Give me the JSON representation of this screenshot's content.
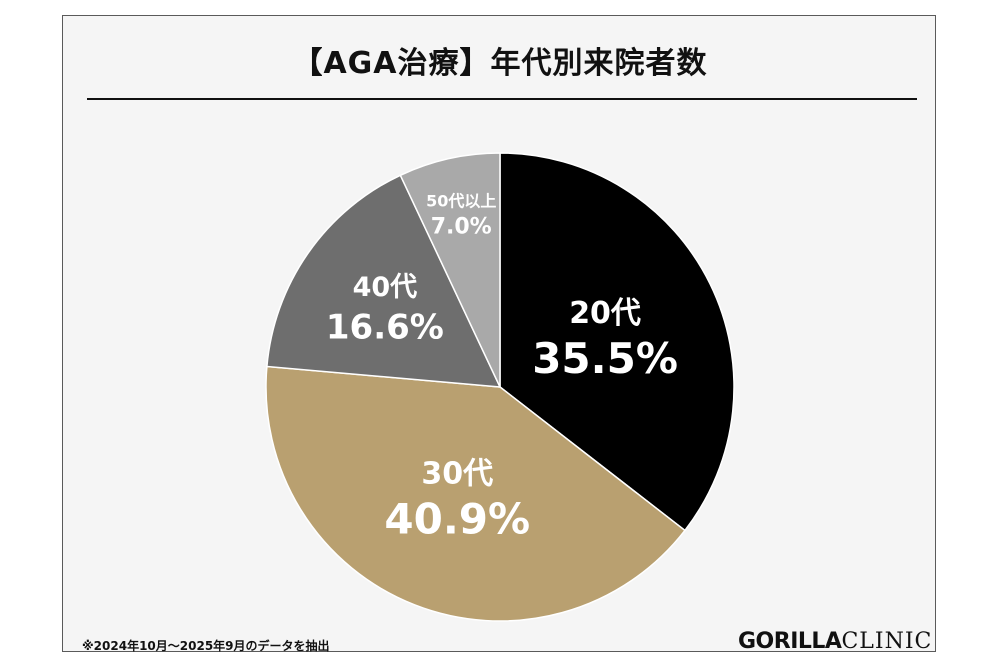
{
  "chart_data": {
    "type": "pie",
    "title": "【AGA治療】年代別来院者数",
    "slices": [
      {
        "label": "20代",
        "value": 35.5,
        "value_label": "35.5%",
        "color": "#000000"
      },
      {
        "label": "30代",
        "value": 40.9,
        "value_label": "40.9%",
        "color": "#b9a070"
      },
      {
        "label": "40代",
        "value": 16.6,
        "value_label": "16.6%",
        "color": "#6e6e6e"
      },
      {
        "label": "50代以上",
        "value": 7.0,
        "value_label": "7.0%",
        "color": "#a9a9a9"
      }
    ],
    "start": "12 o'clock",
    "direction": "clockwise",
    "legend": "none",
    "label_color": "#ffffff"
  },
  "footnote": "※2024年10月～2025年9月のデータを抽出",
  "logo": {
    "bold": "GORILLA",
    "light": "CLINIC"
  }
}
